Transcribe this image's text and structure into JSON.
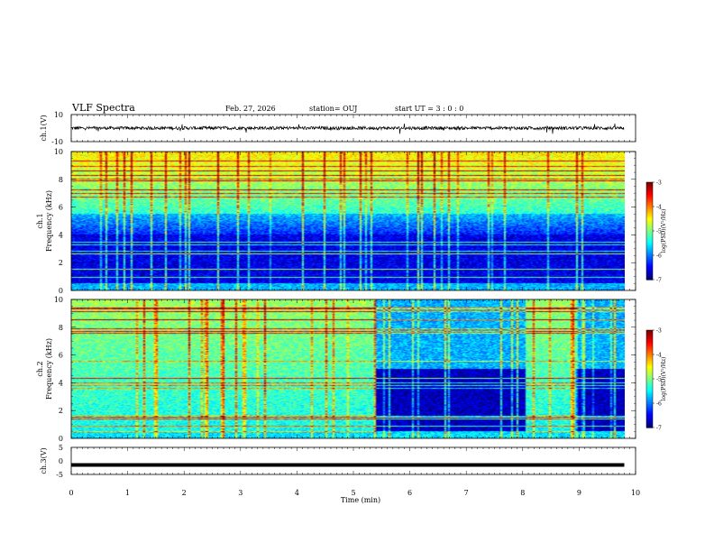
{
  "header": {
    "title": "VLF Spectra",
    "date": "Feb. 27, 2026",
    "station": "station= OUJ",
    "start": "start  UT =   3 : 0  : 0"
  },
  "chart_data": [
    {
      "type": "line",
      "name": "ch1-waveform",
      "ylabel": "ch.1(V)",
      "ylim": [
        -10,
        10
      ],
      "yticks": [
        "10",
        "-10"
      ],
      "baseline": 0,
      "noise_amplitude": 1.2
    },
    {
      "type": "heatmap",
      "name": "ch1-spectrogram",
      "ylabel_line1": "ch.1",
      "ylabel_line2": "Frequency (kHz)",
      "ylim": [
        0,
        10
      ],
      "yticks": [
        "0",
        "2",
        "4",
        "6",
        "8",
        "10"
      ],
      "colorbar": {
        "range": [
          -7,
          -3
        ],
        "ticks": [
          "-3",
          "-4",
          "-5",
          "-6",
          "-7"
        ],
        "label": "log(PSD)(V²/Hz)"
      }
    },
    {
      "type": "heatmap",
      "name": "ch2-spectrogram",
      "ylabel_line1": "ch.2",
      "ylabel_line2": "Frequency (kHz)",
      "ylim": [
        0,
        10
      ],
      "yticks": [
        "0",
        "2",
        "4",
        "6",
        "8",
        "10"
      ],
      "quiet_intervals_min": [
        [
          5.4,
          8.05
        ],
        [
          8.95,
          9.8
        ]
      ],
      "colorbar": {
        "range": [
          -7,
          -3
        ],
        "ticks": [
          "-3",
          "-4",
          "-5",
          "-6",
          "-7"
        ],
        "label": "log(PSD)(V²/Hz)"
      }
    },
    {
      "type": "line",
      "name": "ch3-waveform",
      "ylabel": "ch.3(V)",
      "ylim": [
        -5,
        5
      ],
      "yticks": [
        "5",
        "0",
        "-5"
      ],
      "baseline": -1.5
    }
  ],
  "xaxis": {
    "label": "Time (min)",
    "range": [
      0,
      10
    ],
    "data_end": 9.8,
    "ticks": [
      "0",
      "1",
      "2",
      "3",
      "4",
      "5",
      "6",
      "7",
      "8",
      "9",
      "10"
    ]
  }
}
